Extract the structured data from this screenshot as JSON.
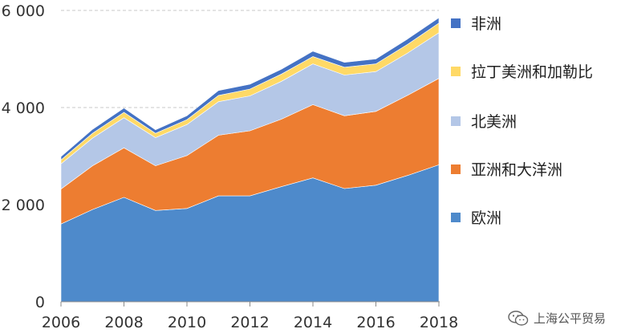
{
  "chart_data": {
    "type": "area",
    "stacked": true,
    "x": [
      2006,
      2007,
      2008,
      2009,
      2010,
      2011,
      2012,
      2013,
      2014,
      2015,
      2016,
      2017,
      2018
    ],
    "series": [
      {
        "name": "欧洲",
        "color": "#4E8ACB",
        "values": [
          1600,
          1900,
          2150,
          1880,
          1920,
          2180,
          2180,
          2370,
          2550,
          2330,
          2400,
          2600,
          2820
        ]
      },
      {
        "name": "亚洲和大洋洲",
        "color": "#ED7D31",
        "values": [
          720,
          900,
          1020,
          920,
          1090,
          1250,
          1340,
          1390,
          1510,
          1500,
          1520,
          1650,
          1780
        ]
      },
      {
        "name": "北美洲",
        "color": "#B4C7E7",
        "values": [
          520,
          570,
          620,
          580,
          640,
          690,
          720,
          780,
          840,
          840,
          820,
          870,
          940
        ]
      },
      {
        "name": "拉丁美洲和加勒比",
        "color": "#FFD966",
        "values": [
          80,
          100,
          110,
          90,
          100,
          130,
          140,
          150,
          150,
          160,
          160,
          180,
          200
        ]
      },
      {
        "name": "非洲",
        "color": "#4472C4",
        "values": [
          70,
          80,
          90,
          70,
          80,
          100,
          100,
          100,
          110,
          100,
          100,
          110,
          110
        ]
      }
    ],
    "ylim": [
      0,
      6000
    ],
    "yticks": [
      0,
      2000,
      4000,
      6000
    ],
    "ytick_labels": [
      "0",
      "2 000",
      "4 000",
      "6 000"
    ],
    "xticks": [
      2006,
      2008,
      2010,
      2012,
      2014,
      2016,
      2018
    ],
    "xtick_labels": [
      "2006",
      "2008",
      "2010",
      "2012",
      "2014",
      "2016",
      "2018"
    ],
    "gridlines": "dashed-horizontal",
    "legend": {
      "placement": "right",
      "order": [
        "非洲",
        "拉丁美洲和加勒比",
        "北美洲",
        "亚洲和大洋洲",
        "欧洲"
      ]
    },
    "title": "",
    "xlabel": "",
    "ylabel": ""
  },
  "watermark": {
    "text": "上海公平贸易",
    "icon": "wechat-icon"
  }
}
